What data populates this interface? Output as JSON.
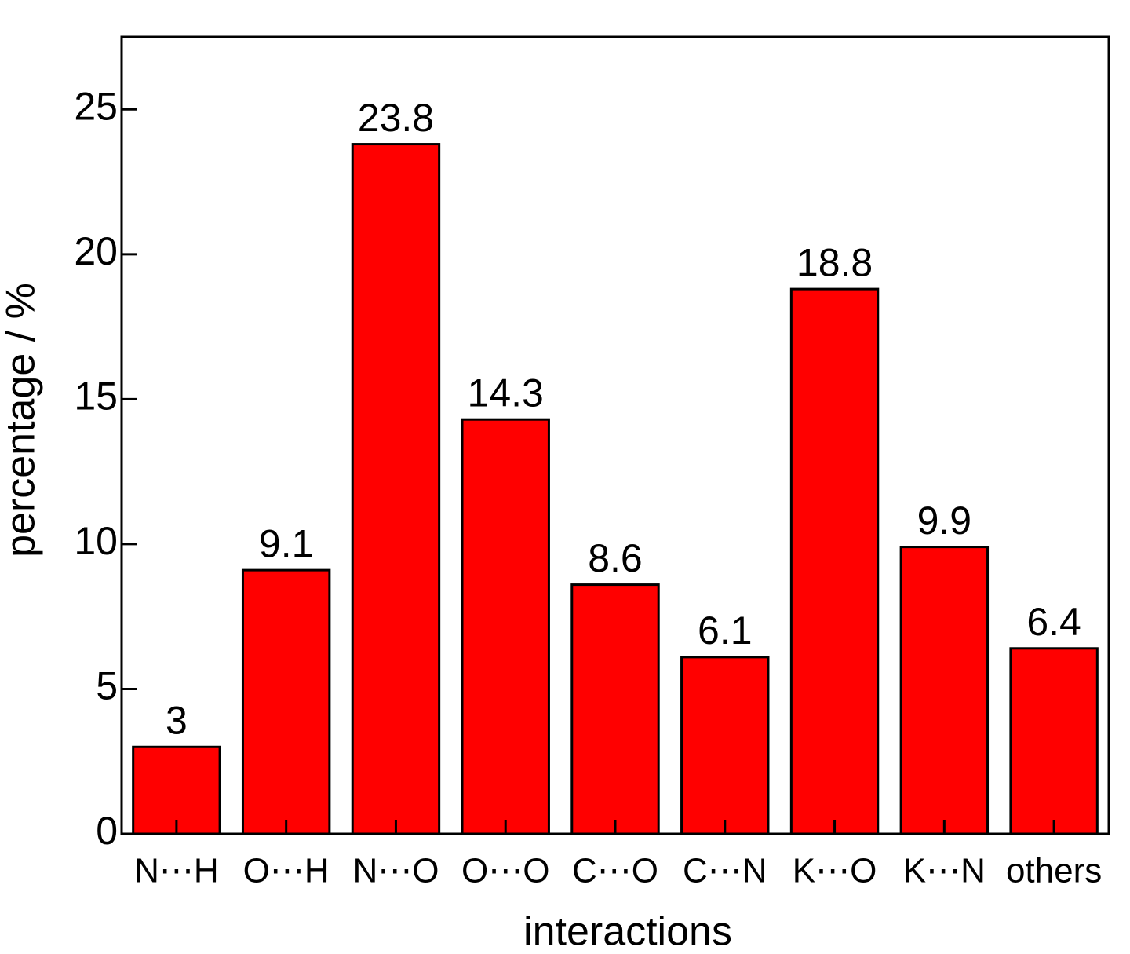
{
  "chart_data": {
    "type": "bar",
    "x_label": "interactions",
    "y_label": "percentage / %",
    "categories": [
      "N⋯H",
      "O⋯H",
      "N⋯O",
      "O⋯O",
      "C⋯O",
      "C⋯N",
      "K⋯O",
      "K⋯N",
      "others"
    ],
    "values": [
      3,
      9.1,
      23.8,
      14.3,
      8.6,
      6.1,
      18.8,
      9.9,
      6.4
    ],
    "color": "#ff0000",
    "ylim": [
      0,
      27.5
    ],
    "yticks": [
      0,
      5,
      10,
      15,
      20,
      25
    ],
    "grid": false
  }
}
